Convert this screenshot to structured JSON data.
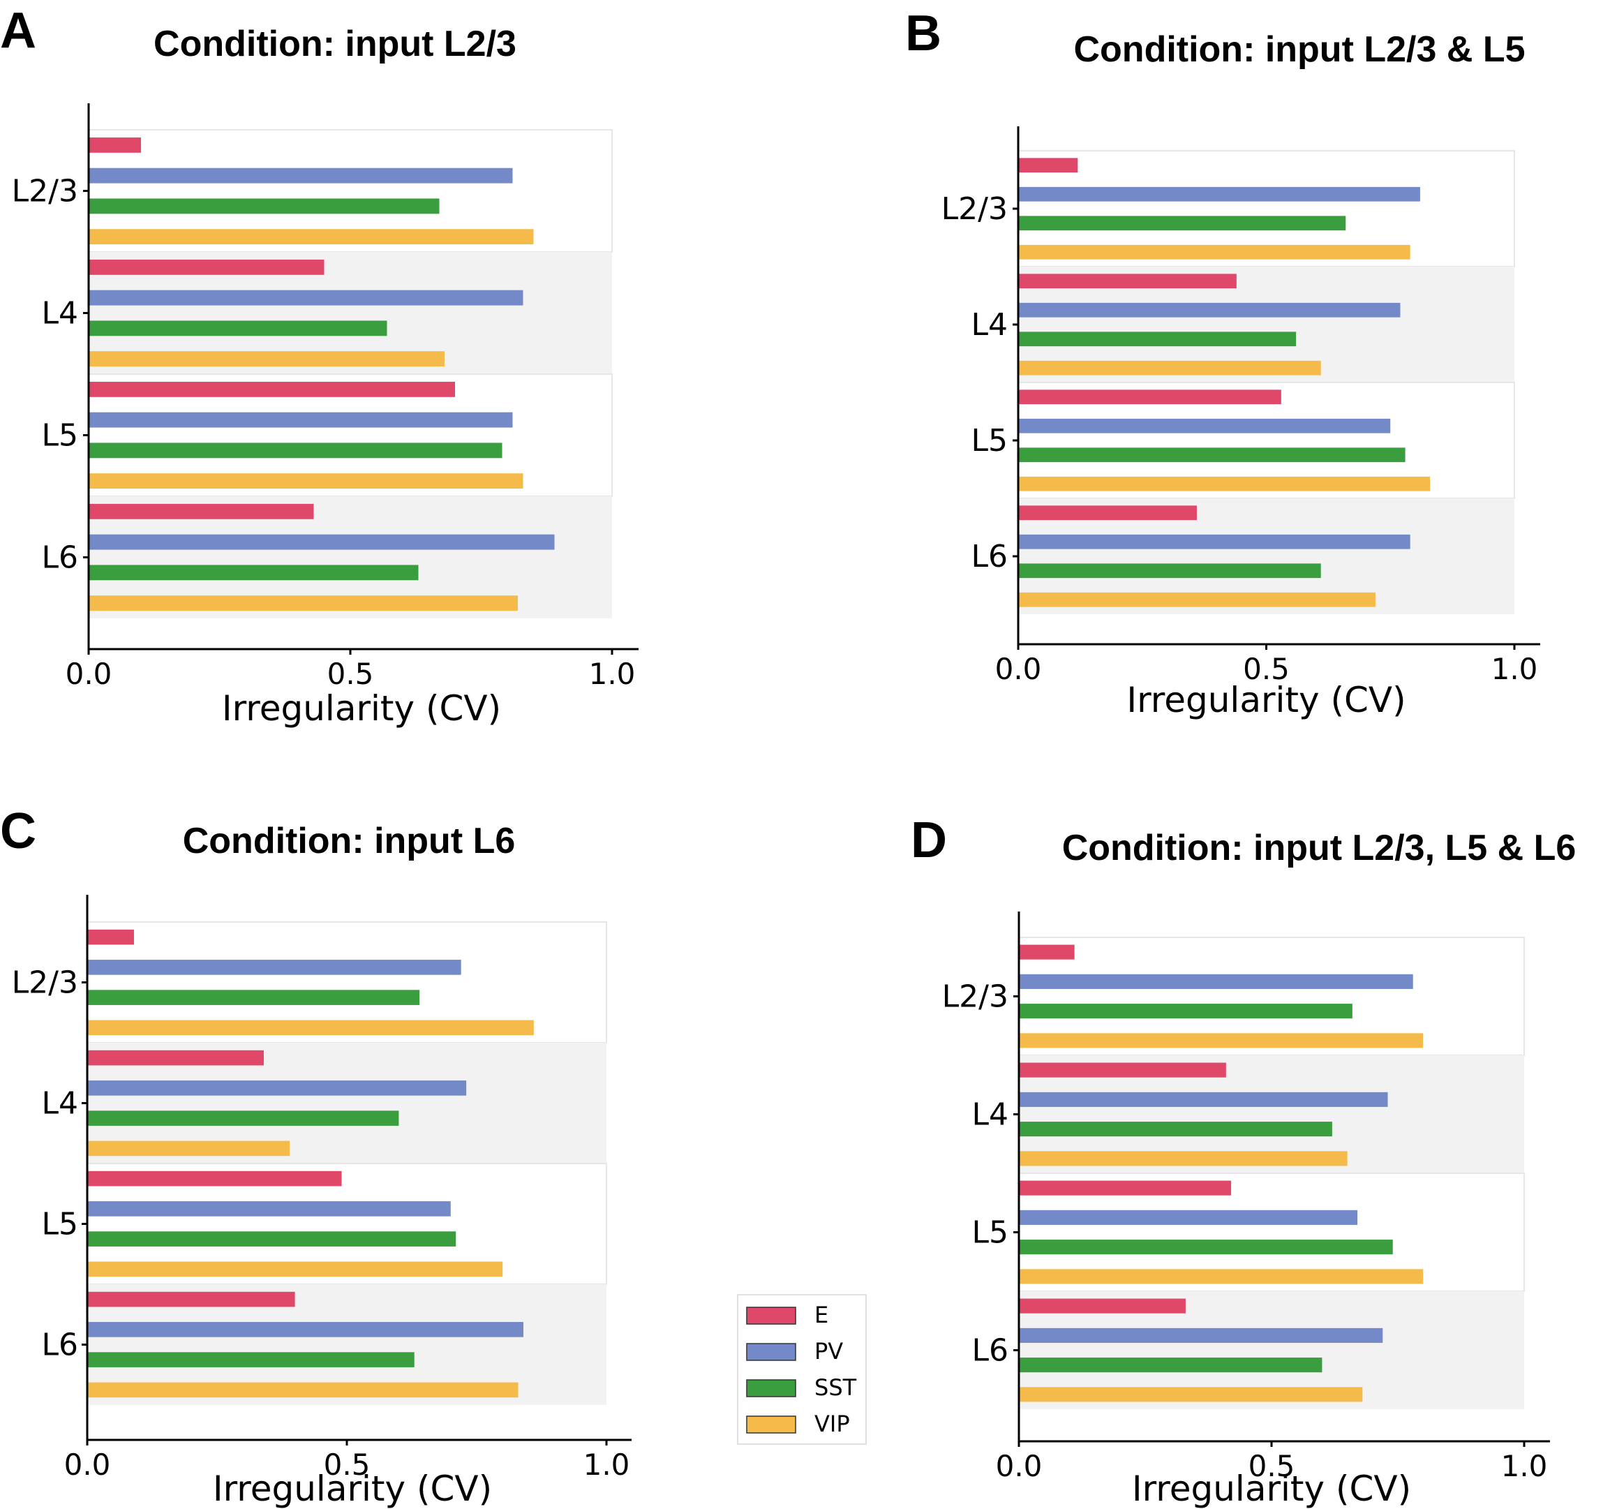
{
  "legend": {
    "items": [
      {
        "label": "E",
        "color": "#e0486a"
      },
      {
        "label": "PV",
        "color": "#7489c8"
      },
      {
        "label": "SST",
        "color": "#3a9e3f"
      },
      {
        "label": "VIP",
        "color": "#f5bb4a"
      }
    ]
  },
  "chart_data": [
    {
      "panel": "A",
      "type": "bar",
      "orientation": "horizontal",
      "title": "Condition: input L2/3",
      "xlabel": "Irregularity (CV)",
      "xlim": [
        0,
        1.05
      ],
      "xticks": [
        "0.0",
        "0.5",
        "1.0"
      ],
      "categories": [
        "L2/3",
        "L4",
        "L5",
        "L6"
      ],
      "series": [
        {
          "name": "E",
          "values": [
            0.1,
            0.45,
            0.7,
            0.43
          ]
        },
        {
          "name": "PV",
          "values": [
            0.81,
            0.83,
            0.81,
            0.89
          ]
        },
        {
          "name": "SST",
          "values": [
            0.67,
            0.57,
            0.79,
            0.63
          ]
        },
        {
          "name": "VIP",
          "values": [
            0.85,
            0.68,
            0.83,
            0.82
          ]
        }
      ]
    },
    {
      "panel": "B",
      "type": "bar",
      "orientation": "horizontal",
      "title": "Condition: input L2/3 & L5",
      "xlabel": "Irregularity (CV)",
      "xlim": [
        0,
        1.05
      ],
      "xticks": [
        "0.0",
        "0.5",
        "1.0"
      ],
      "categories": [
        "L2/3",
        "L4",
        "L5",
        "L6"
      ],
      "series": [
        {
          "name": "E",
          "values": [
            0.12,
            0.44,
            0.53,
            0.36
          ]
        },
        {
          "name": "PV",
          "values": [
            0.81,
            0.77,
            0.75,
            0.79
          ]
        },
        {
          "name": "SST",
          "values": [
            0.66,
            0.56,
            0.78,
            0.61
          ]
        },
        {
          "name": "VIP",
          "values": [
            0.79,
            0.61,
            0.83,
            0.72
          ]
        }
      ]
    },
    {
      "panel": "C",
      "type": "bar",
      "orientation": "horizontal",
      "title": "Condition: input L6",
      "xlabel": "Irregularity (CV)",
      "xlim": [
        0,
        1.05
      ],
      "xticks": [
        "0.0",
        "0.5",
        "1.0"
      ],
      "categories": [
        "L2/3",
        "L4",
        "L5",
        "L6"
      ],
      "series": [
        {
          "name": "E",
          "values": [
            0.09,
            0.34,
            0.49,
            0.4
          ]
        },
        {
          "name": "PV",
          "values": [
            0.72,
            0.73,
            0.7,
            0.84
          ]
        },
        {
          "name": "SST",
          "values": [
            0.64,
            0.6,
            0.71,
            0.63
          ]
        },
        {
          "name": "VIP",
          "values": [
            0.86,
            0.39,
            0.8,
            0.83
          ]
        }
      ]
    },
    {
      "panel": "D",
      "type": "bar",
      "orientation": "horizontal",
      "title": "Condition: input L2/3, L5 & L6",
      "xlabel": "Irregularity (CV)",
      "xlim": [
        0,
        1.05
      ],
      "xticks": [
        "0.0",
        "0.5",
        "1.0"
      ],
      "categories": [
        "L2/3",
        "L4",
        "L5",
        "L6"
      ],
      "series": [
        {
          "name": "E",
          "values": [
            0.11,
            0.41,
            0.42,
            0.33
          ]
        },
        {
          "name": "PV",
          "values": [
            0.78,
            0.73,
            0.67,
            0.72
          ]
        },
        {
          "name": "SST",
          "values": [
            0.66,
            0.62,
            0.74,
            0.6
          ]
        },
        {
          "name": "VIP",
          "values": [
            0.8,
            0.65,
            0.8,
            0.68
          ]
        }
      ]
    }
  ]
}
